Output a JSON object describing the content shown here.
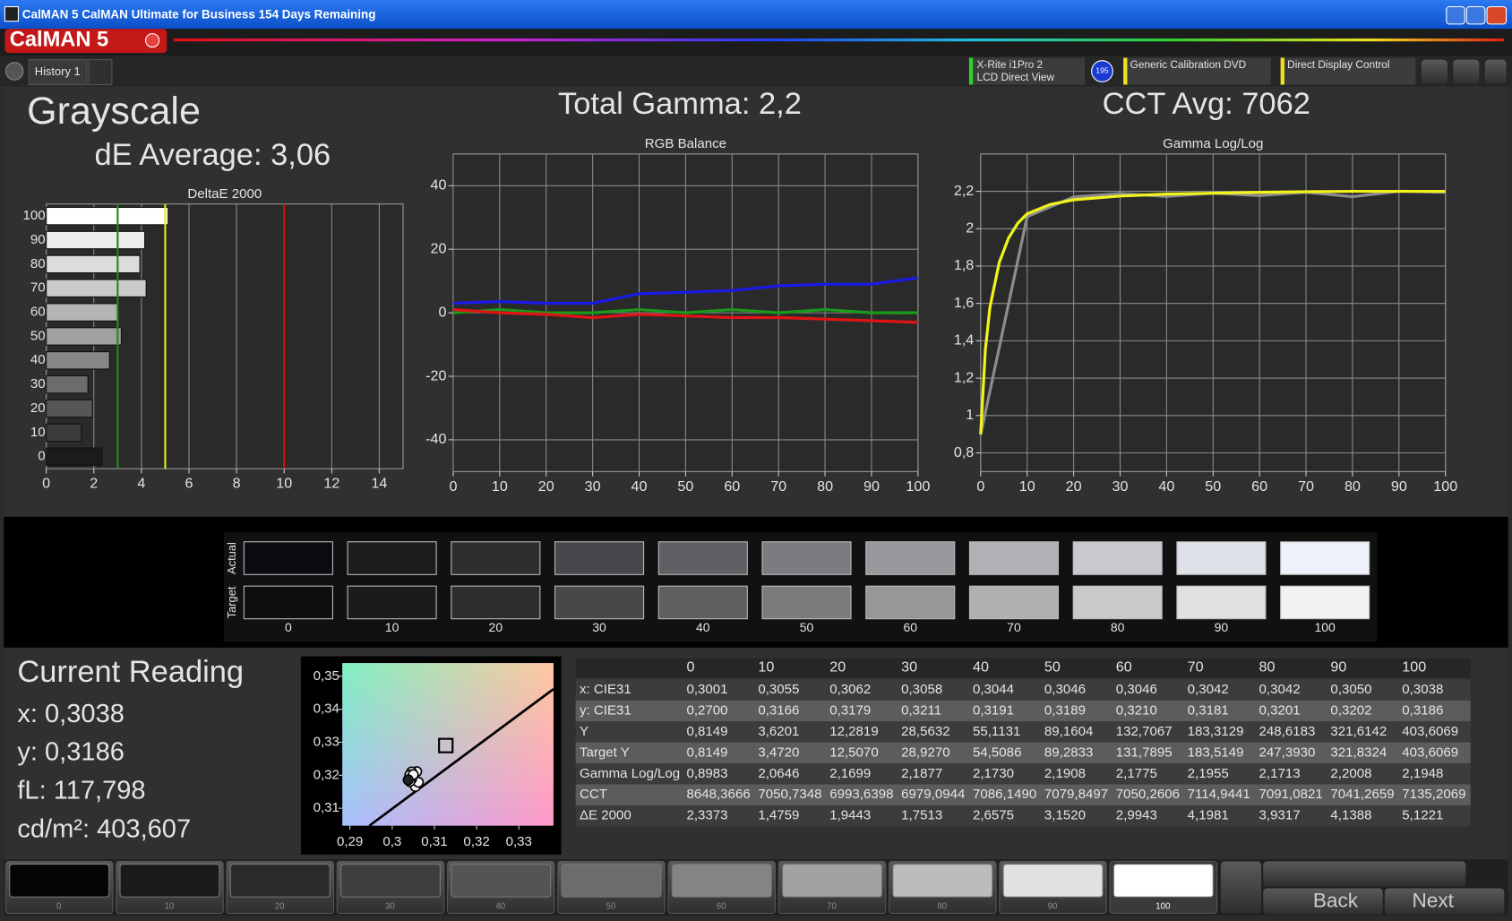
{
  "window": {
    "title": "CalMAN 5 CalMAN Ultimate for Business 154 Days Remaining",
    "logo": "CalMAN 5"
  },
  "toolbar": {
    "tab": "History 1",
    "meter": [
      "X-Rite i1Pro 2",
      "LCD Direct View"
    ],
    "meter_badge": "195",
    "source": "Generic Calibration DVD",
    "display": "Direct Display Control"
  },
  "summary": {
    "title": "Grayscale",
    "de_average": "dE Average: 3,06",
    "total_gamma": "Total Gamma: 2,2",
    "cct_avg": "CCT Avg: 7062"
  },
  "chart_data": [
    {
      "type": "bar",
      "title": "DeltaE 2000",
      "categories": [
        100,
        90,
        80,
        70,
        60,
        50,
        40,
        30,
        20,
        10,
        0
      ],
      "values": [
        5.1221,
        4.1388,
        3.9317,
        4.1981,
        2.9943,
        3.152,
        2.6575,
        1.7513,
        1.9443,
        1.4759,
        2.3373
      ],
      "bar_colors": [
        "#ffffff",
        "#ececec",
        "#dcdcdc",
        "#cacaca",
        "#b4b4b4",
        "#a0a0a0",
        "#888888",
        "#6c6c6c",
        "#565656",
        "#3c3c3c",
        "#1c1c1c"
      ],
      "xlim": [
        0,
        15
      ],
      "xticks": [
        0,
        2,
        4,
        6,
        8,
        10,
        12,
        14
      ],
      "reference_lines": [
        {
          "value": 3,
          "color": "#1f8a1f"
        },
        {
          "value": 5,
          "color": "#e6e619"
        },
        {
          "value": 10,
          "color": "#d01010"
        }
      ],
      "grid": true
    },
    {
      "type": "line",
      "title": "RGB Balance",
      "x": [
        0,
        10,
        20,
        30,
        40,
        50,
        60,
        70,
        80,
        90,
        100
      ],
      "series": [
        {
          "color": "#1a9a1a",
          "values": [
            0,
            1,
            0,
            0,
            1,
            0,
            1,
            0,
            1,
            0,
            0
          ]
        },
        {
          "color": "#e01414",
          "values": [
            1,
            0,
            -0.5,
            -1.5,
            -0.5,
            -1,
            -1.5,
            -1.5,
            -2,
            -2.5,
            -3
          ]
        },
        {
          "color": "#1a1ae6",
          "values": [
            3,
            3.5,
            3,
            3,
            6,
            6.5,
            7,
            8.5,
            9,
            9,
            11
          ]
        }
      ],
      "xlim": [
        0,
        100
      ],
      "xticks": [
        0,
        10,
        20,
        30,
        40,
        50,
        60,
        70,
        80,
        90,
        100
      ],
      "ylim": [
        -50,
        50
      ],
      "yticks": [
        -40,
        -20,
        0,
        20,
        40
      ],
      "grid": true
    },
    {
      "type": "line",
      "title": "Gamma Log/Log",
      "series": [
        {
          "color": "#8c8c8c",
          "x": [
            0,
            10,
            20,
            30,
            40,
            50,
            60,
            70,
            80,
            90,
            100
          ],
          "values": [
            0.8983,
            2.0646,
            2.1699,
            2.1877,
            2.173,
            2.1908,
            2.1775,
            2.1955,
            2.1713,
            2.2008,
            2.1948
          ]
        },
        {
          "color": "#f2f21c",
          "x": [
            0,
            1,
            2,
            4,
            6,
            8,
            10,
            15,
            20,
            30,
            40,
            50,
            60,
            70,
            80,
            90,
            100
          ],
          "values": [
            0.9,
            1.35,
            1.58,
            1.82,
            1.95,
            2.03,
            2.08,
            2.13,
            2.155,
            2.175,
            2.185,
            2.19,
            2.195,
            2.198,
            2.2,
            2.2,
            2.2
          ]
        }
      ],
      "xlim": [
        0,
        100
      ],
      "xticks": [
        0,
        10,
        20,
        30,
        40,
        50,
        60,
        70,
        80,
        90,
        100
      ],
      "ylim": [
        0.7,
        2.4
      ],
      "yticks": [
        {
          "value": 0.8,
          "label": "0,8"
        },
        1,
        {
          "value": 1.2,
          "label": "1,2"
        },
        {
          "value": 1.4,
          "label": "1,4"
        },
        {
          "value": 1.6,
          "label": "1,6"
        },
        {
          "value": 1.8,
          "label": "1,8"
        },
        2,
        {
          "value": 2.2,
          "label": "2,2"
        }
      ],
      "grid": true
    },
    {
      "type": "scatter",
      "x": [
        0.3055,
        0.3062,
        0.3058,
        0.3044,
        0.3046,
        0.3046,
        0.3042,
        0.3042,
        0.305,
        0.3038
      ],
      "values": [
        0.3166,
        0.3179,
        0.3211,
        0.3191,
        0.3189,
        0.321,
        0.3181,
        0.3201,
        0.3202,
        0.3186
      ],
      "target_x": 0.3127,
      "target_y": 0.329,
      "xlim": [
        0.2882,
        0.3382
      ],
      "ylim": [
        0.3047,
        0.354
      ],
      "xticks": [
        {
          "value": 0.29,
          "label": "0,29"
        },
        {
          "value": 0.3,
          "label": "0,3"
        },
        {
          "value": 0.31,
          "label": "0,31"
        },
        {
          "value": 0.32,
          "label": "0,32"
        },
        {
          "value": 0.33,
          "label": "0,33"
        }
      ],
      "yticks": [
        {
          "value": 0.31,
          "label": "0,31"
        },
        {
          "value": 0.32,
          "label": "0,32"
        },
        {
          "value": 0.33,
          "label": "0,33"
        },
        {
          "value": 0.34,
          "label": "0,34"
        },
        {
          "value": 0.35,
          "label": "0,35"
        }
      ]
    }
  ],
  "swatches": {
    "actual_label": "Actual",
    "target_label": "Target",
    "labels": [
      0,
      10,
      20,
      30,
      40,
      50,
      60,
      70,
      80,
      90,
      100
    ],
    "actual_colors": [
      "#0c0a10",
      "#1c1c1e",
      "#2e2e30",
      "#48484c",
      "#606064",
      "#7c7c80",
      "#98989c",
      "#b0b0b6",
      "#c8c9cf",
      "#dfe1e8",
      "#eef1fa"
    ],
    "target_colors": [
      "#0e0e0e",
      "#1b1b1b",
      "#2d2d2d",
      "#484848",
      "#5f5f5f",
      "#7b7b7b",
      "#979797",
      "#b0b0b0",
      "#c9c9c9",
      "#e0e0e0",
      "#f2f2f2"
    ]
  },
  "current_reading": {
    "title": "Current Reading",
    "lines": [
      "x: 0,3038",
      "y: 0,3186",
      "fL: 117,798",
      "cd/m²: 403,607"
    ]
  },
  "table": {
    "columns": [
      0,
      10,
      20,
      30,
      40,
      50,
      60,
      70,
      80,
      90,
      100
    ],
    "rows": [
      {
        "label": "x: CIE31",
        "cells": [
          "0,3001",
          "0,3055",
          "0,3062",
          "0,3058",
          "0,3044",
          "0,3046",
          "0,3046",
          "0,3042",
          "0,3042",
          "0,3050",
          "0,3038"
        ]
      },
      {
        "label": "y: CIE31",
        "cells": [
          "0,2700",
          "0,3166",
          "0,3179",
          "0,3211",
          "0,3191",
          "0,3189",
          "0,3210",
          "0,3181",
          "0,3201",
          "0,3202",
          "0,3186"
        ]
      },
      {
        "label": "Y",
        "cells": [
          "0,8149",
          "3,6201",
          "12,2819",
          "28,5632",
          "55,1131",
          "89,1604",
          "132,7067",
          "183,3129",
          "248,6183",
          "321,6142",
          "403,6069"
        ]
      },
      {
        "label": "Target Y",
        "cells": [
          "0,8149",
          "3,4720",
          "12,5070",
          "28,9270",
          "54,5086",
          "89,2833",
          "131,7895",
          "183,5149",
          "247,3930",
          "321,8324",
          "403,6069"
        ]
      },
      {
        "label": "Gamma Log/Log",
        "cells": [
          "0,8983",
          "2,0646",
          "2,1699",
          "2,1877",
          "2,1730",
          "2,1908",
          "2,1775",
          "2,1955",
          "2,1713",
          "2,2008",
          "2,1948"
        ]
      },
      {
        "label": "CCT",
        "cells": [
          "8648,3666",
          "7050,7348",
          "6993,6398",
          "6979,0944",
          "7086,1490",
          "7079,8497",
          "7050,2606",
          "7114,9441",
          "7091,0821",
          "7041,2659",
          "7135,2069"
        ]
      },
      {
        "label": "ΔE 2000",
        "cells": [
          "2,3373",
          "1,4759",
          "1,9443",
          "1,7513",
          "2,6575",
          "3,1520",
          "2,9943",
          "4,1981",
          "3,9317",
          "4,1388",
          "5,1221"
        ]
      }
    ]
  },
  "bottom_bar": {
    "labels": [
      0,
      10,
      20,
      30,
      40,
      50,
      60,
      70,
      80,
      90,
      100
    ],
    "colors": [
      "#050505",
      "#1a1a1a",
      "#2a2a2a",
      "#3e3e3e",
      "#545454",
      "#6c6c6c",
      "#848484",
      "#a2a2a2",
      "#bcbcbc",
      "#e2e2e2",
      "#ffffff"
    ],
    "back": "Back",
    "next": "Next"
  }
}
